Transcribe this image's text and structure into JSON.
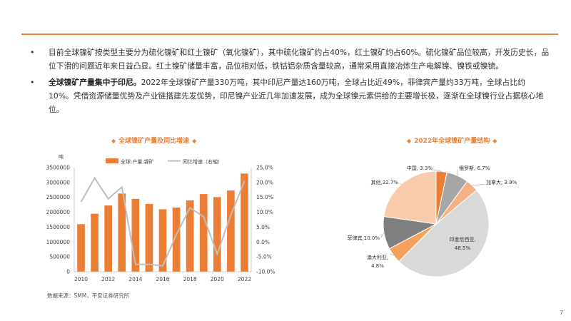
{
  "bullets": [
    {
      "lead": "",
      "text": "目前全球镍矿按类型主要分为硫化镍矿和红土镍矿（氧化镍矿），其中硫化镍矿约占40%，红土镍矿约占60%。硫化镍矿品位较高，开发历史长，品位下滑的问题近年来日益凸显。红土镍矿储量丰富，品位相对低，铁钴铝杂质含量较高，通常采用直接冶炼生产电解镍、镍铁或镍锍。"
    },
    {
      "lead": "全球镍矿产量集中于印尼。",
      "text": "2022年全球镍矿产量330万吨，其中印尼产量达160万吨，全球占比近49%，菲律宾产量约33万吨，全球占比约10%。凭借资源储量优势及产业链搭建先发优势，印尼镍产业近几年加速发展，成为全球镍元素供给的主要增长极，逐渐在全球镍行业占据核心地位。"
    }
  ],
  "chart_data": [
    {
      "type": "bar",
      "title": "全球镍矿产量及同比增速",
      "y_unit_label": "吨",
      "categories": [
        "2010",
        "2011",
        "2012",
        "2013",
        "2014",
        "2015",
        "2016",
        "2017",
        "2018",
        "2019",
        "2020",
        "2021",
        "2022"
      ],
      "x_tick_labels": [
        "2010",
        "2012",
        "2014",
        "2016",
        "2018",
        "2020",
        "2022"
      ],
      "series": [
        {
          "name": "全球:产量:镍矿",
          "kind": "bar",
          "axis": "left",
          "values": [
            1600000,
            1950000,
            2230000,
            2630000,
            2450000,
            2280000,
            2100000,
            2160000,
            2400000,
            2610000,
            2510000,
            2730000,
            3300000
          ]
        },
        {
          "name": "同比增速（右轴）",
          "kind": "line",
          "axis": "right",
          "values": [
            13.5,
            21.5,
            14.5,
            18.5,
            -7.5,
            -7.5,
            -8.0,
            2.5,
            11.5,
            8.5,
            -4.0,
            9.0,
            20.5
          ]
        }
      ],
      "y_left_range": [
        0,
        3500000
      ],
      "y_left_ticks": [
        "0",
        "500000",
        "1000000",
        "1500000",
        "2000000",
        "2500000",
        "3000000",
        "3500000"
      ],
      "y_right_range": [
        -10,
        25
      ],
      "y_right_ticks": [
        "-10.0%",
        "-5.0%",
        "0.0%",
        "5.0%",
        "10.0%",
        "15.0%",
        "20.0%",
        "25.0%"
      ],
      "colors": {
        "bar": "#eb7d35",
        "line": "#bfbfbf"
      }
    },
    {
      "type": "pie",
      "title": "2022年全球镍矿产量结构",
      "slices": [
        {
          "label": "中国",
          "value": 3.3,
          "display": "中国, 3.3%",
          "color": "#eb7d35"
        },
        {
          "label": "俄罗斯",
          "value": 6.7,
          "display": "俄罗斯, 6.7%",
          "color": "#a6a6a6"
        },
        {
          "label": "加拿大",
          "value": 3.9,
          "display": "加拿大, 3.9%",
          "color": "#f4b183"
        },
        {
          "label": "印度尼西亚",
          "value": 48.5,
          "display_name": "印度尼西亚,",
          "display_value": "48.5%",
          "color": "#d9d9d9"
        },
        {
          "label": "澳大利亚",
          "value": 4.8,
          "display_name": "澳大利亚,",
          "display_value": "4.8%",
          "color": "#f4a15d"
        },
        {
          "label": "菲律宾",
          "value": 10.0,
          "display": "菲律宾,10.0%",
          "color": "#7f7f7f"
        },
        {
          "label": "其他",
          "value": 22.7,
          "display": "其他,22.7%",
          "color": "#f8cbad"
        }
      ]
    }
  ],
  "source": "数据来源：SMM，平安证券研究所",
  "page_number": "7"
}
